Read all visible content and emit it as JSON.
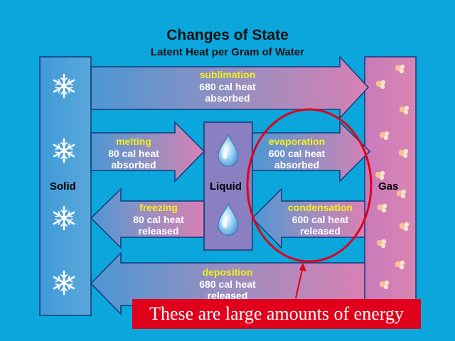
{
  "title": "Changes of State",
  "subtitle": "Latent Heat per Gram of Water",
  "phases": {
    "solid": "Solid",
    "liquid": "Liquid",
    "gas": "Gas"
  },
  "processes": {
    "sublimation": {
      "name": "sublimation",
      "line1": "680 cal heat",
      "line2": "absorbed"
    },
    "melting": {
      "name": "melting",
      "line1": "80 cal heat",
      "line2": "absorbed"
    },
    "evaporation": {
      "name": "evaporation",
      "line1": "600 cal heat",
      "line2": "absorbed"
    },
    "freezing": {
      "name": "freezing",
      "line1": "80 cal heat",
      "line2": "released"
    },
    "condensation": {
      "name": "condensation",
      "line1": "600 cal heat",
      "line2": "released"
    },
    "deposition": {
      "name": "deposition",
      "line1": "680 cal heat",
      "line2": "released"
    }
  },
  "callout": "These are large amounts of energy",
  "colors": {
    "background": "#0aa6dc",
    "solid": "#4aa3d6",
    "gas": "#d07db4",
    "label": "#f2ef1c",
    "callout": "#e0001b"
  },
  "icons": [
    "snowflake-icon",
    "water-drop-icon",
    "gas-molecule-icon"
  ]
}
